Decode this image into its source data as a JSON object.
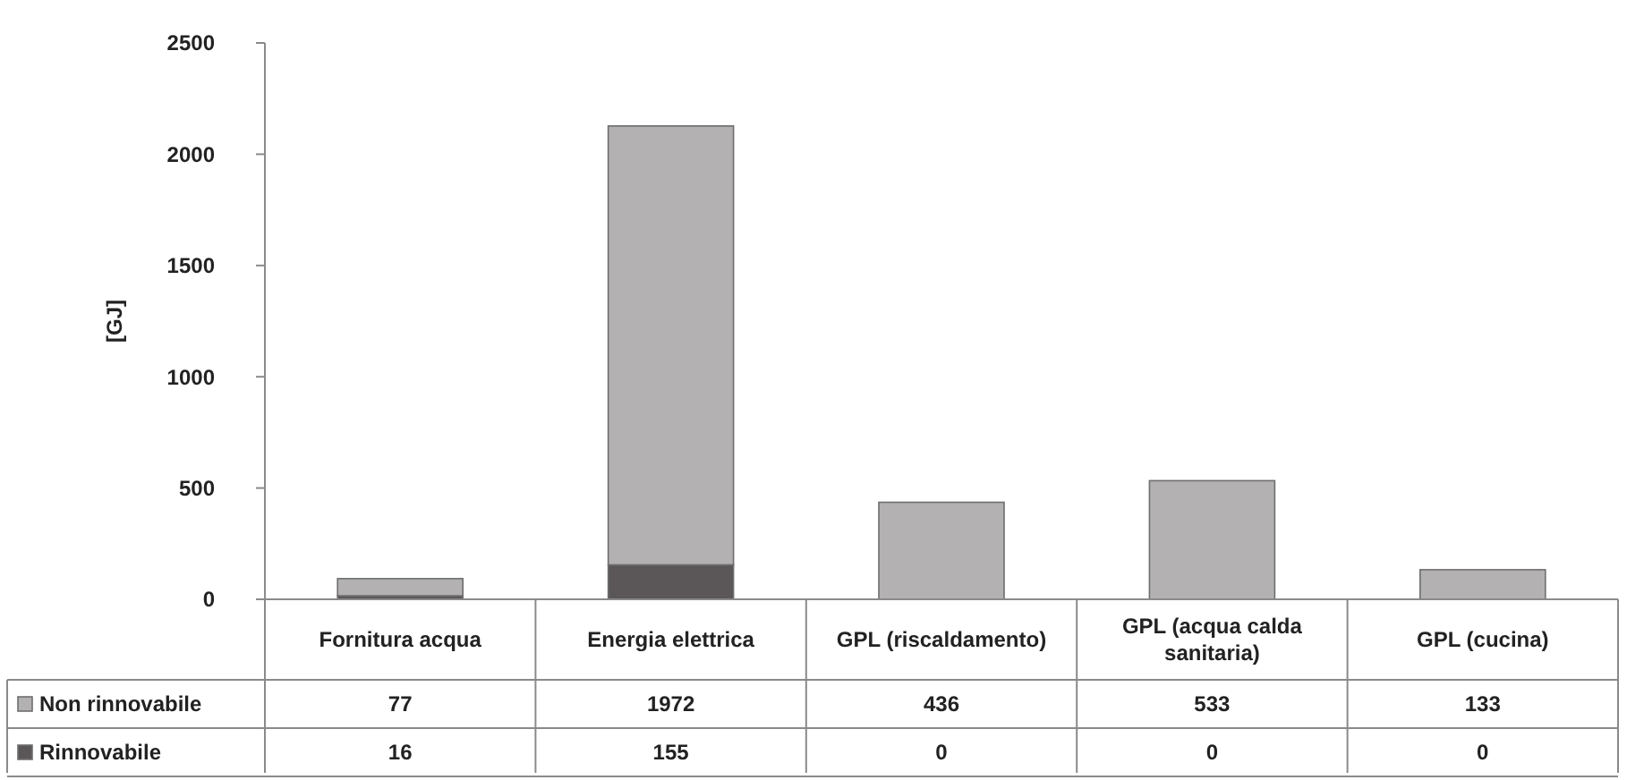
{
  "chart_data": {
    "type": "bar",
    "stacked": true,
    "ylabel": "[GJ]",
    "categories": [
      "Fornitura acqua",
      "Energia elettrica",
      "GPL (riscaldamento)",
      "GPL (acqua calda sanitaria)",
      "GPL (cucina)"
    ],
    "series": [
      {
        "name": "Rinnovabile",
        "color": "#5b5758",
        "values": [
          16,
          155,
          0,
          0,
          0
        ]
      },
      {
        "name": "Non rinnovabile",
        "color": "#b3b1b2",
        "values": [
          77,
          1972,
          436,
          533,
          133
        ]
      }
    ],
    "ylim": [
      0,
      2500
    ],
    "yticks": [
      0,
      500,
      1000,
      1500,
      2000,
      2500
    ],
    "data_labels": true,
    "legend": "bottom left",
    "grid": false
  }
}
